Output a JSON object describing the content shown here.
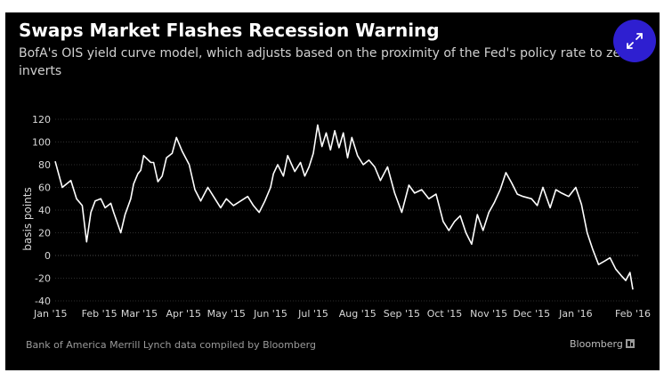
{
  "header": {
    "title": "Swaps Market Flashes Recession Warning",
    "subtitle": "BofA's OIS yield curve model, which adjusts based on the proximity of the Fed's policy rate to zero, inverts"
  },
  "footer": {
    "source": "Bank of America Merrill Lynch data compiled by Bloomberg",
    "brand": "Bloomberg"
  },
  "icons": {
    "expand": "expand-arrows-icon",
    "brand_mark": "bloomberg-mark-icon"
  },
  "colors": {
    "background": "#000000",
    "line": "#ffffff",
    "grid": "#3a3a3a",
    "accent": "#2e1fd0",
    "text": "#ffffff",
    "muted": "#9a9a9a"
  },
  "chart_data": {
    "type": "line",
    "title": "Swaps Market Flashes Recession Warning",
    "subtitle": "BofA's OIS yield curve model, which adjusts based on the proximity of the Fed's policy rate to zero, inverts",
    "xlabel": "",
    "ylabel": "basis points",
    "ylim": [
      -40,
      120
    ],
    "yticks": [
      -40,
      -20,
      0,
      20,
      40,
      60,
      80,
      100,
      120
    ],
    "xticks": [
      "Jan '15",
      "Feb '15",
      "Mar '15",
      "Apr '15",
      "May '15",
      "Jun '15",
      "Jul '15",
      "Aug '15",
      "Sep '15",
      "Oct '15",
      "Nov '15",
      "Dec '15",
      "Jan '16",
      "Feb '16"
    ],
    "grid": true,
    "x": [
      "2015-01-01",
      "2015-01-06",
      "2015-01-12",
      "2015-01-16",
      "2015-01-20",
      "2015-01-23",
      "2015-01-26",
      "2015-01-29",
      "2015-02-02",
      "2015-02-05",
      "2015-02-09",
      "2015-02-11",
      "2015-02-16",
      "2015-02-19",
      "2015-02-23",
      "2015-02-25",
      "2015-02-28",
      "2015-03-02",
      "2015-03-04",
      "2015-03-09",
      "2015-03-11",
      "2015-03-14",
      "2015-03-17",
      "2015-03-20",
      "2015-03-24",
      "2015-03-27",
      "2015-03-31",
      "2015-04-05",
      "2015-04-09",
      "2015-04-13",
      "2015-04-18",
      "2015-04-22",
      "2015-04-27",
      "2015-05-01",
      "2015-05-06",
      "2015-05-11",
      "2015-05-16",
      "2015-05-20",
      "2015-05-24",
      "2015-05-28",
      "2015-06-01",
      "2015-06-03",
      "2015-06-06",
      "2015-06-10",
      "2015-06-13",
      "2015-06-18",
      "2015-06-22",
      "2015-06-25",
      "2015-06-28",
      "2015-07-01",
      "2015-07-04",
      "2015-07-07",
      "2015-07-10",
      "2015-07-13",
      "2015-07-16",
      "2015-07-19",
      "2015-07-22",
      "2015-07-25",
      "2015-07-28",
      "2015-08-01",
      "2015-08-05",
      "2015-08-09",
      "2015-08-13",
      "2015-08-17",
      "2015-08-22",
      "2015-08-27",
      "2015-09-01",
      "2015-09-06",
      "2015-09-10",
      "2015-09-15",
      "2015-09-20",
      "2015-09-25",
      "2015-09-30",
      "2015-10-04",
      "2015-10-08",
      "2015-10-12",
      "2015-10-16",
      "2015-10-20",
      "2015-10-24",
      "2015-10-28",
      "2015-11-01",
      "2015-11-05",
      "2015-11-09",
      "2015-11-13",
      "2015-11-17",
      "2015-11-21",
      "2015-11-25",
      "2015-12-01",
      "2015-12-05",
      "2015-12-09",
      "2015-12-14",
      "2015-12-18",
      "2015-12-22",
      "2015-12-27",
      "2016-01-01",
      "2016-01-05",
      "2016-01-09",
      "2016-01-13",
      "2016-01-17",
      "2016-01-21",
      "2016-01-25",
      "2016-01-29",
      "2016-02-02",
      "2016-02-05",
      "2016-02-08",
      "2016-02-10"
    ],
    "values": [
      83,
      60,
      66,
      50,
      44,
      12,
      38,
      48,
      50,
      42,
      46,
      38,
      20,
      36,
      50,
      63,
      72,
      75,
      88,
      82,
      82,
      65,
      70,
      86,
      90,
      104,
      92,
      80,
      58,
      48,
      60,
      52,
      42,
      50,
      44,
      48,
      52,
      44,
      38,
      48,
      60,
      72,
      80,
      70,
      88,
      74,
      82,
      70,
      78,
      90,
      115,
      96,
      108,
      93,
      110,
      95,
      108,
      86,
      104,
      88,
      80,
      84,
      78,
      66,
      78,
      55,
      38,
      62,
      55,
      58,
      50,
      54,
      30,
      22,
      30,
      35,
      20,
      10,
      36,
      22,
      38,
      47,
      58,
      73,
      64,
      54,
      52,
      50,
      44,
      60,
      42,
      58,
      55,
      52,
      60,
      45,
      20,
      5,
      -8,
      -5,
      -2,
      -12,
      -18,
      -22,
      -15,
      -30
    ]
  }
}
